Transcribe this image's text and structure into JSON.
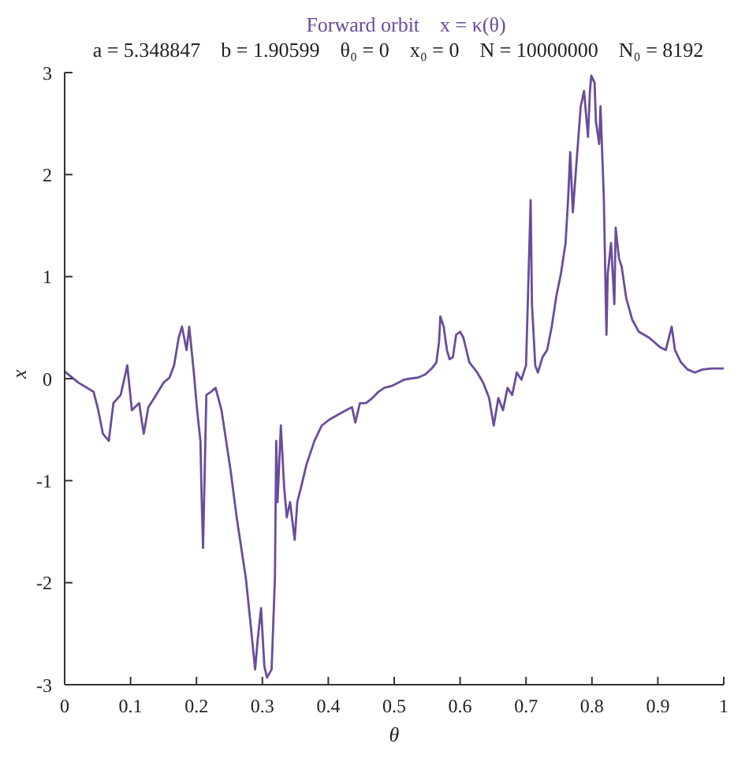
{
  "chart_data": {
    "type": "line",
    "title": "Forward orbit    x = κ(θ)",
    "subtitle": "a = 5.348847    b = 1.90599    θ₀ = 0    x₀ = 0    N = 10000000    N₀ = 8192",
    "xlabel": "θ",
    "ylabel": "x",
    "x": [
      0,
      0.021,
      0.044,
      0.051,
      0.058,
      0.067,
      0.074,
      0.085,
      0.095,
      0.102,
      0.113,
      0.12,
      0.127,
      0.136,
      0.15,
      0.159,
      0.166,
      0.173,
      0.178,
      0.185,
      0.189,
      0.196,
      0.201,
      0.206,
      0.208,
      0.21,
      0.215,
      0.222,
      0.229,
      0.238,
      0.245,
      0.252,
      0.261,
      0.268,
      0.275,
      0.282,
      0.289,
      0.293,
      0.298,
      0.303,
      0.307,
      0.314,
      0.319,
      0.321,
      0.323,
      0.328,
      0.333,
      0.337,
      0.342,
      0.349,
      0.353,
      0.36,
      0.367,
      0.379,
      0.39,
      0.402,
      0.413,
      0.427,
      0.436,
      0.441,
      0.448,
      0.457,
      0.467,
      0.476,
      0.485,
      0.497,
      0.506,
      0.515,
      0.524,
      0.536,
      0.547,
      0.557,
      0.564,
      0.568,
      0.57,
      0.575,
      0.58,
      0.584,
      0.589,
      0.594,
      0.6,
      0.605,
      0.614,
      0.626,
      0.635,
      0.644,
      0.651,
      0.658,
      0.665,
      0.672,
      0.679,
      0.686,
      0.693,
      0.7,
      0.707,
      0.709,
      0.714,
      0.718,
      0.725,
      0.732,
      0.739,
      0.746,
      0.753,
      0.76,
      0.764,
      0.767,
      0.771,
      0.776,
      0.783,
      0.788,
      0.792,
      0.794,
      0.797,
      0.799,
      0.804,
      0.806,
      0.811,
      0.813,
      0.818,
      0.822,
      0.824,
      0.829,
      0.834,
      0.836,
      0.841,
      0.845,
      0.852,
      0.861,
      0.871,
      0.887,
      0.903,
      0.912,
      0.921,
      0.926,
      0.935,
      0.945,
      0.956,
      0.968,
      0.982,
      1
    ],
    "series": [
      {
        "color": "#6a4c9c",
        "values": [
          0.07,
          -0.04,
          -0.13,
          -0.31,
          -0.54,
          -0.61,
          -0.24,
          -0.16,
          0.13,
          -0.31,
          -0.24,
          -0.54,
          -0.28,
          -0.19,
          -0.04,
          0.01,
          0.13,
          0.4,
          0.51,
          0.28,
          0.51,
          0.06,
          -0.31,
          -0.61,
          -1.21,
          -1.66,
          -0.16,
          -0.13,
          -0.09,
          -0.31,
          -0.61,
          -0.91,
          -1.36,
          -1.66,
          -1.96,
          -2.4,
          -2.85,
          -2.55,
          -2.25,
          -2.82,
          -2.93,
          -2.85,
          -1.96,
          -0.61,
          -1.21,
          -0.46,
          -1.06,
          -1.36,
          -1.21,
          -1.58,
          -1.21,
          -1.03,
          -0.84,
          -0.61,
          -0.46,
          -0.4,
          -0.36,
          -0.31,
          -0.28,
          -0.43,
          -0.24,
          -0.24,
          -0.19,
          -0.13,
          -0.09,
          -0.07,
          -0.04,
          -0.01,
          0,
          0.01,
          0.04,
          0.1,
          0.16,
          0.36,
          0.61,
          0.51,
          0.28,
          0.19,
          0.21,
          0.43,
          0.46,
          0.4,
          0.16,
          0.06,
          -0.04,
          -0.19,
          -0.46,
          -0.19,
          -0.31,
          -0.09,
          -0.16,
          0.06,
          -0.01,
          0.13,
          1.75,
          0.73,
          0.13,
          0.06,
          0.21,
          0.28,
          0.51,
          0.81,
          1.03,
          1.33,
          1.78,
          2.22,
          1.63,
          2.07,
          2.67,
          2.82,
          2.52,
          2.37,
          2.82,
          2.97,
          2.9,
          2.52,
          2.3,
          2.67,
          1.78,
          0.43,
          1.03,
          1.33,
          0.73,
          1.48,
          1.18,
          1.1,
          0.79,
          0.58,
          0.46,
          0.4,
          0.31,
          0.28,
          0.51,
          0.28,
          0.16,
          0.09,
          0.06,
          0.09,
          0.1,
          0.1
        ]
      }
    ],
    "xlim": [
      0,
      1
    ],
    "xticks": [
      0,
      0.1,
      0.2,
      0.3,
      0.4,
      0.5,
      0.6,
      0.7,
      0.8,
      0.9,
      1
    ],
    "ylim": [
      -3,
      3
    ],
    "yticks": [
      -3,
      -2,
      -1,
      0,
      1,
      2,
      3
    ],
    "grid": false,
    "legend": false,
    "marker": "none",
    "line_style": "solid"
  }
}
